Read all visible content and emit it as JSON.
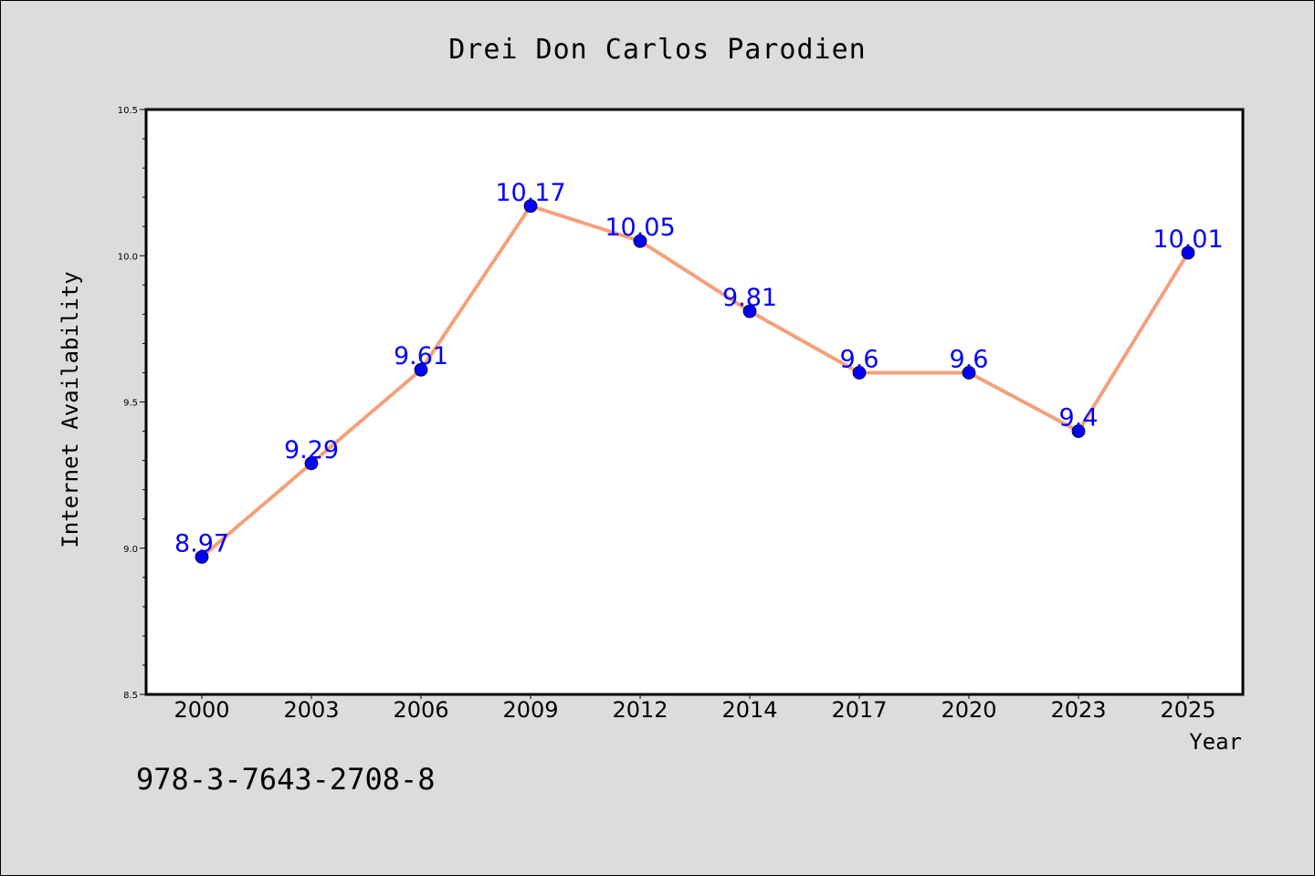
{
  "chart_data": {
    "type": "line",
    "title": "Drei Don Carlos Parodien",
    "xlabel": "Year",
    "ylabel": "Internet Availability",
    "categories": [
      "2000",
      "2003",
      "2006",
      "2009",
      "2012",
      "2014",
      "2017",
      "2020",
      "2023",
      "2025"
    ],
    "series": [
      {
        "values": [
          8.97,
          9.29,
          9.61,
          10.17,
          10.05,
          9.81,
          9.6,
          9.6,
          9.4,
          10.01
        ],
        "data_labels": [
          "8.97",
          "9.29",
          "9.61",
          "10.17",
          "10.05",
          "9.81",
          "9.6",
          "9.6",
          "9.4",
          "10.01"
        ]
      }
    ],
    "ylim": [
      8.5,
      10.5
    ],
    "y_major_ticks": [
      8.5,
      9.0,
      9.5,
      10.0,
      10.5
    ],
    "y_tick_labels": [
      "8.5",
      "9.0",
      "9.5",
      "10.0",
      "10.5"
    ],
    "y_minor_step": 0.1,
    "grid": false,
    "line_color": "#f4a07c",
    "marker_color": "#0000ff",
    "label_color": "#0000ff",
    "plot_background": "#ffffff",
    "figure_background": "#dcdcdc"
  },
  "footer": {
    "isbn": "978-3-7643-2708-8"
  }
}
